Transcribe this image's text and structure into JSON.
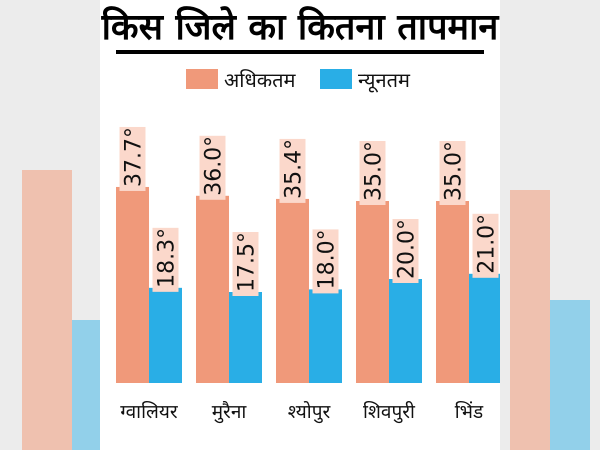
{
  "title": "किस जिले का कितना तापमान",
  "legend": {
    "max_label": "अधिकतम",
    "min_label": "न्यूनतम"
  },
  "colors": {
    "max": "#f0997a",
    "min": "#29aee6",
    "label_bg": "#fbd8cb",
    "side_bg": "#ececec"
  },
  "chart_data": {
    "type": "bar",
    "title": "किस जिले का कितना तापमान",
    "categories": [
      "ग्वालियर",
      "मुरैना",
      "श्योपुर",
      "शिवपुरी",
      "भिंड"
    ],
    "series": [
      {
        "name": "अधिकतम",
        "values": [
          37.7,
          36.0,
          35.4,
          35.0,
          35.0
        ],
        "labels": [
          "37.7°",
          "36.0°",
          "35.4°",
          "35.0°",
          "35.0°"
        ]
      },
      {
        "name": "न्यूनतम",
        "values": [
          18.3,
          17.5,
          18.0,
          20.0,
          21.0
        ],
        "labels": [
          "18.3°",
          "17.5°",
          "18.0°",
          "20.0°",
          "21.0°"
        ]
      }
    ],
    "xlabel": "",
    "ylabel": "",
    "grid": false,
    "legend_position": "top-center"
  }
}
